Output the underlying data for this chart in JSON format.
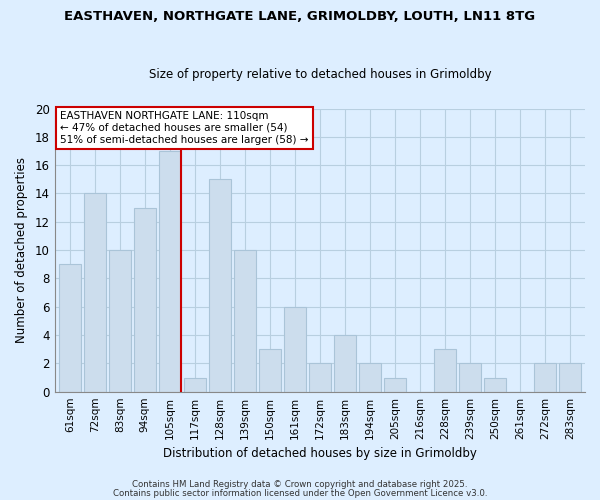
{
  "title1": "EASTHAVEN, NORTHGATE LANE, GRIMOLDBY, LOUTH, LN11 8TG",
  "title2": "Size of property relative to detached houses in Grimoldby",
  "xlabel": "Distribution of detached houses by size in Grimoldby",
  "ylabel": "Number of detached properties",
  "bin_labels": [
    "61sqm",
    "72sqm",
    "83sqm",
    "94sqm",
    "105sqm",
    "117sqm",
    "128sqm",
    "139sqm",
    "150sqm",
    "161sqm",
    "172sqm",
    "183sqm",
    "194sqm",
    "205sqm",
    "216sqm",
    "228sqm",
    "239sqm",
    "250sqm",
    "261sqm",
    "272sqm",
    "283sqm"
  ],
  "bar_heights": [
    9,
    14,
    10,
    13,
    17,
    1,
    15,
    10,
    3,
    6,
    2,
    4,
    2,
    1,
    0,
    3,
    2,
    1,
    0,
    2,
    2
  ],
  "bar_color": "#ccdded",
  "bar_edge_color": "#aac4d8",
  "grid_color": "#b8cfe0",
  "bg_color": "#ddeeff",
  "fig_bg_color": "#ddeeff",
  "marker_color": "#cc0000",
  "annotation_title": "EASTHAVEN NORTHGATE LANE: 110sqm",
  "annotation_line1": "← 47% of detached houses are smaller (54)",
  "annotation_line2": "51% of semi-detached houses are larger (58) →",
  "annotation_box_color": "#ffffff",
  "annotation_box_edge": "#cc0000",
  "ylim": [
    0,
    20
  ],
  "yticks": [
    0,
    2,
    4,
    6,
    8,
    10,
    12,
    14,
    16,
    18,
    20
  ],
  "footnote1": "Contains HM Land Registry data © Crown copyright and database right 2025.",
  "footnote2": "Contains public sector information licensed under the Open Government Licence v3.0."
}
